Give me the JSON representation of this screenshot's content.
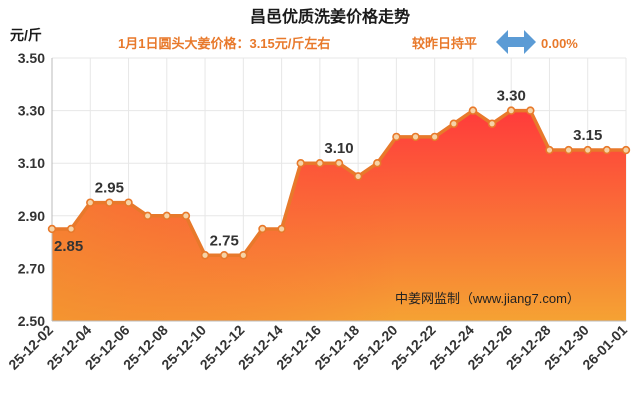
{
  "header": {
    "title": "昌邑优质洗姜价格走势",
    "subtitle_price": "1月1日圆头大姜价格：3.15元/斤左右",
    "subtitle_change_label": "较昨日持平",
    "subtitle_change_value": "0.00%"
  },
  "watermark": "中姜网监制（www.jiang7.com）",
  "colors": {
    "title": "#1a1a1a",
    "subtitle": "#e8792b",
    "line": "#e8792b",
    "area_top": "#ff3b3b",
    "area_bottom": "#f5a233",
    "arrow": "#5b9bd5",
    "grid": "#e7e7e7",
    "axis_text": "#333333"
  },
  "chart_data": {
    "type": "area",
    "ylabel": "元/斤",
    "xlabel": "",
    "ylim": [
      2.5,
      3.5
    ],
    "yticks": [
      "2.50",
      "2.70",
      "2.90",
      "3.10",
      "3.30",
      "3.50"
    ],
    "grid": true,
    "x": [
      "25-12-02",
      "25-12-03",
      "25-12-04",
      "25-12-05",
      "25-12-06",
      "25-12-07",
      "25-12-08",
      "25-12-09",
      "25-12-10",
      "25-12-11",
      "25-12-12",
      "25-12-13",
      "25-12-14",
      "25-12-15",
      "25-12-16",
      "25-12-17",
      "25-12-18",
      "25-12-19",
      "25-12-20",
      "25-12-21",
      "25-12-22",
      "25-12-23",
      "25-12-24",
      "25-12-25",
      "25-12-26",
      "25-12-27",
      "25-12-28",
      "25-12-29",
      "25-12-30",
      "25-12-31",
      "26-01-01"
    ],
    "xtick_labels": [
      "25-12-02",
      "25-12-04",
      "25-12-06",
      "25-12-08",
      "25-12-10",
      "25-12-12",
      "25-12-14",
      "25-12-16",
      "25-12-18",
      "25-12-20",
      "25-12-22",
      "25-12-24",
      "25-12-26",
      "25-12-28",
      "25-12-30",
      "26-01-01"
    ],
    "values": [
      2.85,
      2.85,
      2.95,
      2.95,
      2.95,
      2.9,
      2.9,
      2.9,
      2.75,
      2.75,
      2.75,
      2.85,
      2.85,
      3.1,
      3.1,
      3.1,
      3.05,
      3.1,
      3.2,
      3.2,
      3.2,
      3.25,
      3.3,
      3.25,
      3.3,
      3.3,
      3.15,
      3.15,
      3.15,
      3.15,
      3.15
    ],
    "annotations": [
      {
        "index": 0,
        "text": "2.85",
        "position": "below"
      },
      {
        "index": 3,
        "text": "2.95",
        "position": "above"
      },
      {
        "index": 9,
        "text": "2.75",
        "position": "above"
      },
      {
        "index": 15,
        "text": "3.10",
        "position": "above"
      },
      {
        "index": 24,
        "text": "3.30",
        "position": "above"
      },
      {
        "index": 28,
        "text": "3.15",
        "position": "above"
      }
    ]
  }
}
